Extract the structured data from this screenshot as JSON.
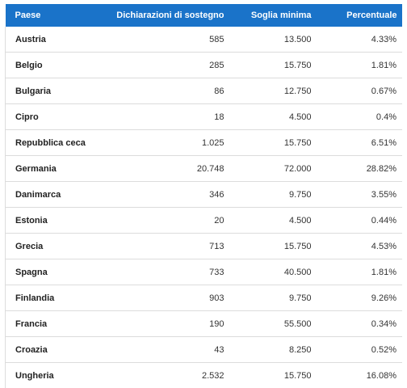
{
  "table": {
    "header": [
      "Paese",
      "Dichiarazioni di sostegno",
      "Soglia minima",
      "Percentuale"
    ],
    "rows": [
      [
        "Austria",
        "585",
        "13.500",
        "4.33%"
      ],
      [
        "Belgio",
        "285",
        "15.750",
        "1.81%"
      ],
      [
        "Bulgaria",
        "86",
        "12.750",
        "0.67%"
      ],
      [
        "Cipro",
        "18",
        "4.500",
        "0.4%"
      ],
      [
        "Repubblica ceca",
        "1.025",
        "15.750",
        "6.51%"
      ],
      [
        "Germania",
        "20.748",
        "72.000",
        "28.82%"
      ],
      [
        "Danimarca",
        "346",
        "9.750",
        "3.55%"
      ],
      [
        "Estonia",
        "20",
        "4.500",
        "0.44%"
      ],
      [
        "Grecia",
        "713",
        "15.750",
        "4.53%"
      ],
      [
        "Spagna",
        "733",
        "40.500",
        "1.81%"
      ],
      [
        "Finlandia",
        "903",
        "9.750",
        "9.26%"
      ],
      [
        "Francia",
        "190",
        "55.500",
        "0.34%"
      ],
      [
        "Croazia",
        "43",
        "8.250",
        "0.52%"
      ],
      [
        "Ungheria",
        "2.532",
        "15.750",
        "16.08%"
      ]
    ]
  }
}
